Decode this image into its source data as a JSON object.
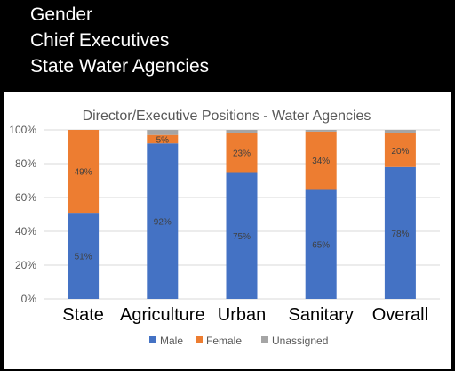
{
  "slide": {
    "title_lines": [
      "Gender",
      "Chief Executives",
      "State Water Agencies"
    ]
  },
  "chart_data": {
    "type": "bar",
    "stacked": true,
    "title": "Director/Executive Positions - Water Agencies",
    "categories": [
      "State",
      "Agriculture",
      "Urban",
      "Sanitary",
      "Overall"
    ],
    "series": [
      {
        "name": "Male",
        "color": "#4472C4",
        "values": [
          51,
          92,
          75,
          65,
          78
        ],
        "labels": [
          "51%",
          "92%",
          "75%",
          "65%",
          "78%"
        ]
      },
      {
        "name": "Female",
        "color": "#ED7D31",
        "values": [
          49,
          5,
          23,
          34,
          20
        ],
        "labels": [
          "49%",
          "5%",
          "23%",
          "34%",
          "20%"
        ]
      },
      {
        "name": "Unassigned",
        "color": "#A5A5A5",
        "values": [
          0,
          3,
          2,
          1,
          2
        ],
        "labels": []
      }
    ],
    "yticks": [
      "0%",
      "20%",
      "40%",
      "60%",
      "80%",
      "100%"
    ],
    "ylim": [
      0,
      100
    ],
    "grid": true,
    "legend_position": "bottom"
  }
}
